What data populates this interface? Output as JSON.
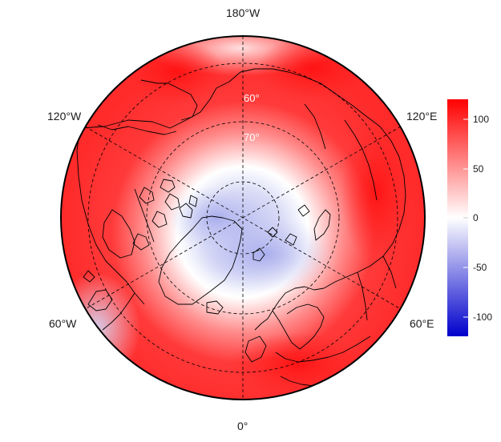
{
  "map": {
    "projection": "north-polar stereographic",
    "colors": {
      "high": "#ff0000",
      "mid": "#ffffff",
      "low": "#0000cc",
      "coastline": "#000000",
      "graticule": "#000000",
      "latitude_label": "#ffffff"
    },
    "longitude_labels": {
      "top": "180°W",
      "bottom": "0°",
      "upper_left": "120°W",
      "upper_right": "120°E",
      "lower_left": "60°W",
      "lower_right": "60°E"
    },
    "latitude_labels": [
      "60°",
      "70°"
    ],
    "colorbar": {
      "ticks": [
        "100",
        "50",
        "0",
        "-50",
        "-100"
      ],
      "range": [
        -120,
        120
      ]
    }
  }
}
